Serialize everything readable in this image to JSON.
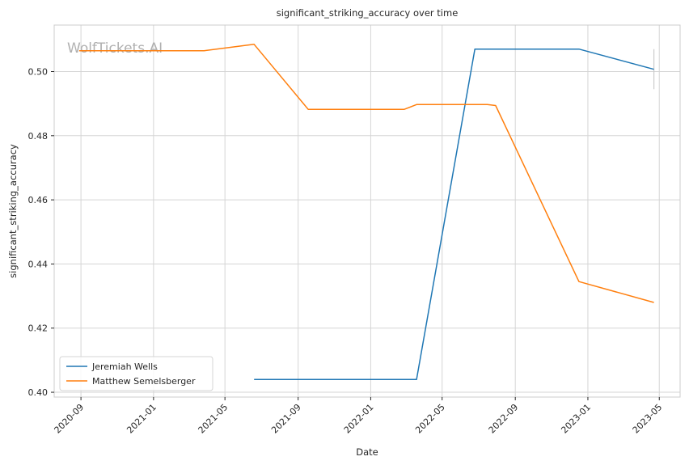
{
  "chart_data": {
    "type": "line",
    "title": "significant_striking_accuracy over time",
    "xlabel": "Date",
    "ylabel": "significant_striking_accuracy",
    "watermark": "WolfTickets.AI",
    "x_axis_kind": "date",
    "xlim": [
      "2020-07-18",
      "2023-06-05"
    ],
    "ylim": [
      0.3985,
      0.5145
    ],
    "x_ticks": [
      "2020-09-01",
      "2021-01-01",
      "2021-05-01",
      "2021-09-01",
      "2022-01-01",
      "2022-05-01",
      "2022-09-01",
      "2023-01-01",
      "2023-05-01"
    ],
    "x_tick_labels": [
      "2020-09",
      "2021-01",
      "2021-05",
      "2021-09",
      "2022-01",
      "2022-05",
      "2022-09",
      "2023-01",
      "2023-05"
    ],
    "y_ticks": [
      0.4,
      0.42,
      0.44,
      0.46,
      0.48,
      0.5
    ],
    "y_tick_labels": [
      "0.40",
      "0.42",
      "0.44",
      "0.46",
      "0.48",
      "0.50"
    ],
    "grid": true,
    "legend_position": "lower-left",
    "series": [
      {
        "name": "Jeremiah Wells",
        "color": "#1f77b4",
        "points": [
          {
            "x": "2021-06-19",
            "y": 0.404
          },
          {
            "x": "2022-03-19",
            "y": 0.404
          },
          {
            "x": "2022-06-25",
            "y": 0.507
          },
          {
            "x": "2022-12-17",
            "y": 0.507
          },
          {
            "x": "2023-04-22",
            "y": 0.5007
          }
        ]
      },
      {
        "name": "Matthew Semelsberger",
        "color": "#ff7f0e",
        "points": [
          {
            "x": "2020-08-29",
            "y": 0.5065
          },
          {
            "x": "2021-03-27",
            "y": 0.5065
          },
          {
            "x": "2021-06-19",
            "y": 0.5085
          },
          {
            "x": "2021-09-18",
            "y": 0.4882
          },
          {
            "x": "2022-02-26",
            "y": 0.4882
          },
          {
            "x": "2022-03-19",
            "y": 0.4897
          },
          {
            "x": "2022-07-16",
            "y": 0.4897
          },
          {
            "x": "2022-07-30",
            "y": 0.4894
          },
          {
            "x": "2022-12-17",
            "y": 0.4345
          },
          {
            "x": "2023-04-22",
            "y": 0.428
          }
        ]
      }
    ],
    "error_bar": {
      "x": "2023-04-22",
      "ylow": 0.4945,
      "yhigh": 0.507,
      "color": "#cccccc"
    }
  }
}
